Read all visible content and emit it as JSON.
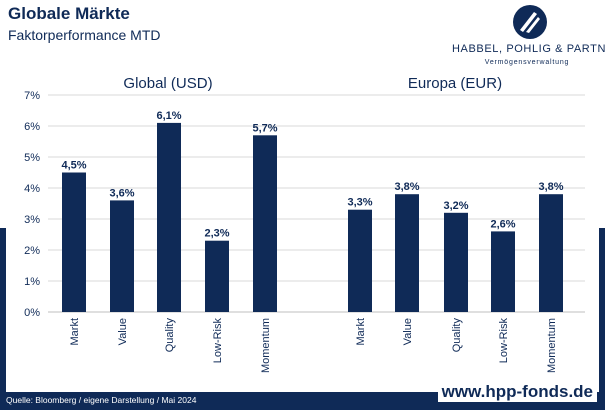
{
  "header": {
    "title": "Globale Märkte",
    "subtitle": "Faktorperformance MTD"
  },
  "logo": {
    "name": "HABBEL, POHLIG & PARTNER",
    "tagline": "Vermögensverwaltung"
  },
  "footer": {
    "source": "Quelle: Bloomberg / eigene Darstellung / Mai 2024",
    "website": "www.hpp-fonds.de"
  },
  "colors": {
    "bar": "#0f2a57",
    "text": "#0f2a57",
    "grid": "#d9d9d9"
  },
  "chart_data": {
    "type": "bar",
    "ylim": [
      0,
      7
    ],
    "y_ticks": [
      "0%",
      "1%",
      "2%",
      "3%",
      "4%",
      "5%",
      "6%",
      "7%"
    ],
    "grid": true,
    "groups": [
      {
        "title": "Global (USD)",
        "categories": [
          "Markt",
          "Value",
          "Quality",
          "Low-Risk",
          "Momentum"
        ],
        "values": [
          4.5,
          3.6,
          6.1,
          2.3,
          5.7
        ],
        "labels": [
          "4,5%",
          "3,6%",
          "6,1%",
          "2,3%",
          "5,7%"
        ]
      },
      {
        "title": "Europa (EUR)",
        "categories": [
          "Markt",
          "Value",
          "Quality",
          "Low-Risk",
          "Momentum"
        ],
        "values": [
          3.3,
          3.8,
          3.2,
          2.6,
          3.8
        ],
        "labels": [
          "3,3%",
          "3,8%",
          "3,2%",
          "2,6%",
          "3,8%"
        ]
      }
    ]
  }
}
